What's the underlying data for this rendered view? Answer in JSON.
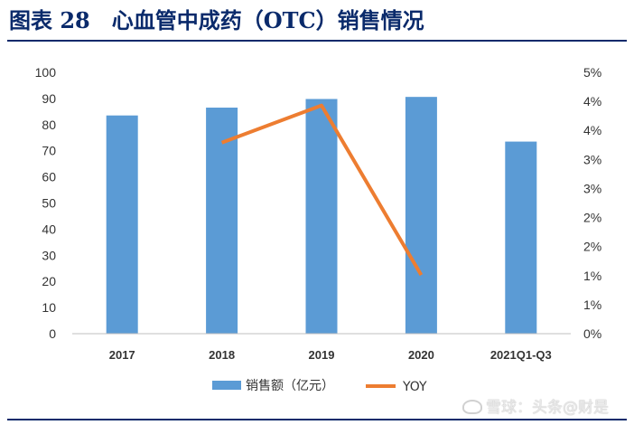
{
  "figure": {
    "number": "图表 28",
    "title": "心血管中成药（OTC）销售情况"
  },
  "watermark": "雪球：头条@财是",
  "chart_data": {
    "type": "bar+line",
    "categories": [
      "2017",
      "2018",
      "2019",
      "2020",
      "2021Q1-Q3"
    ],
    "series": [
      {
        "name": "销售额（亿元）",
        "type": "bar",
        "axis": "left",
        "color": "#5b9bd5",
        "values": [
          83.5,
          86.5,
          89.8,
          90.6,
          73.5
        ]
      },
      {
        "name": "YOY",
        "type": "line",
        "axis": "right",
        "color": "#ed7d31",
        "values": [
          null,
          0.0329,
          0.0393,
          0.0101,
          null
        ]
      }
    ],
    "y_left": {
      "min": 0,
      "max": 100,
      "step": 10,
      "tick_labels": [
        "0",
        "10",
        "20",
        "30",
        "40",
        "50",
        "60",
        "70",
        "80",
        "90",
        "100"
      ]
    },
    "y_right": {
      "min": 0,
      "max": 0.045,
      "step": 0.005,
      "tick_labels": [
        "0%",
        "1%",
        "1%",
        "2%",
        "2%",
        "3%",
        "3%",
        "4%",
        "4%",
        "5%"
      ]
    },
    "grid": false,
    "legend_position": "bottom"
  }
}
